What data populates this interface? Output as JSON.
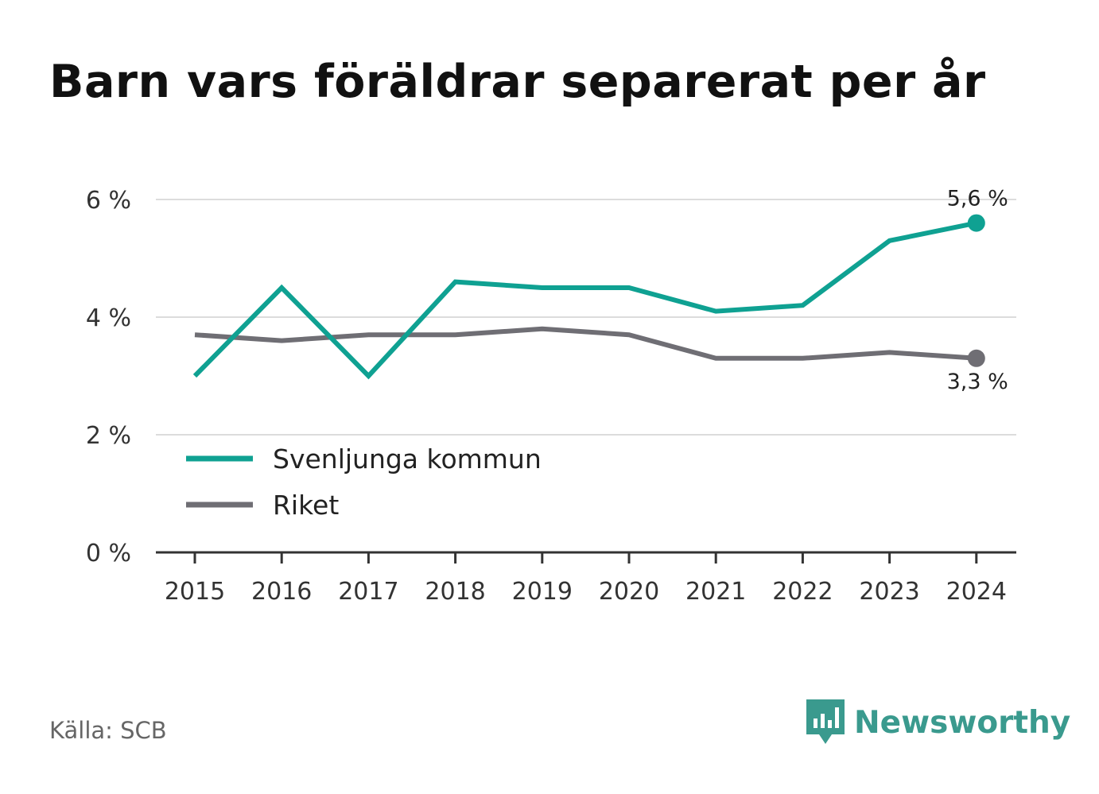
{
  "header": {
    "title": "Barn vars föräldrar separerat per år"
  },
  "chart_data": {
    "type": "line",
    "title": "Barn vars föräldrar separerat per år",
    "x": [
      2015,
      2016,
      2017,
      2018,
      2019,
      2020,
      2021,
      2022,
      2023,
      2024
    ],
    "x_tick_labels": [
      "2015",
      "2016",
      "2017",
      "2018",
      "2019",
      "2020",
      "2021",
      "2022",
      "2023",
      "2024"
    ],
    "y_ticks": [
      0,
      2,
      4,
      6
    ],
    "y_tick_labels": [
      "0 %",
      "2 %",
      "4 %",
      "6 %"
    ],
    "ylim": [
      0,
      6
    ],
    "grid": true,
    "legend_position": "bottom-left",
    "series": [
      {
        "name": "Svenljunga kommun",
        "color": "#0fa192",
        "values": [
          3.0,
          4.5,
          3.0,
          4.6,
          4.5,
          4.5,
          4.1,
          4.2,
          5.3,
          5.6
        ],
        "end_label": "5,6 %"
      },
      {
        "name": "Riket",
        "color": "#6f6e74",
        "values": [
          3.7,
          3.6,
          3.7,
          3.7,
          3.8,
          3.7,
          3.3,
          3.3,
          3.4,
          3.3
        ],
        "end_label": "3,3 %"
      }
    ]
  },
  "footer": {
    "source": "Källa: SCB",
    "brand": "Newsworthy",
    "brand_icon": "newsworthy-logo-icon",
    "brand_color": "#3a9a8e"
  }
}
